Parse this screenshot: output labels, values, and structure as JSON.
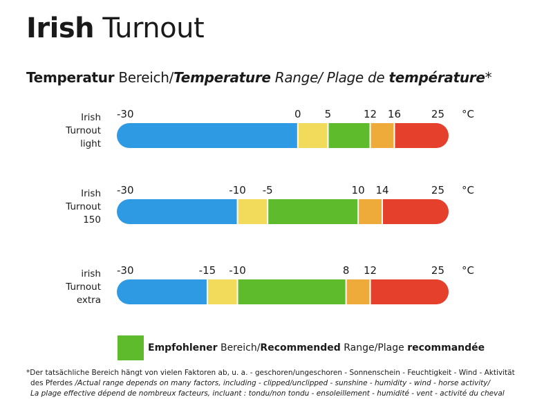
{
  "header": {
    "title_bold": "Irish",
    "title_rest": " Turnout",
    "subtitle_part1": "Temperatur",
    "subtitle_part2": " Bereich/",
    "subtitle_part3": "Temperature",
    "subtitle_part4": " Range/ Plage de ",
    "subtitle_part5": "température",
    "subtitle_part6": "*"
  },
  "chart_data": {
    "type": "bar",
    "unit": "°C",
    "range": [
      -30,
      25
    ],
    "colors": {
      "cold": "#2f9ae4",
      "cool": "#f2da5a",
      "recommended": "#5dbb2c",
      "warm": "#efab3a",
      "hot": "#e4402b"
    },
    "rows": [
      {
        "label_lines": [
          "Irish",
          "Turnout",
          "light"
        ],
        "ticks": [
          "-30",
          "0",
          "5",
          "12",
          "16",
          "25"
        ],
        "segments": [
          {
            "from": -30,
            "to": 0,
            "zone": "cold"
          },
          {
            "from": 0,
            "to": 5,
            "zone": "cool"
          },
          {
            "from": 5,
            "to": 12,
            "zone": "recommended"
          },
          {
            "from": 12,
            "to": 16,
            "zone": "warm"
          },
          {
            "from": 16,
            "to": 25,
            "zone": "hot"
          }
        ]
      },
      {
        "label_lines": [
          "Irish",
          "Turnout",
          "150"
        ],
        "ticks": [
          "-30",
          "-10",
          "-5",
          "10",
          "14",
          "25"
        ],
        "segments": [
          {
            "from": -30,
            "to": -10,
            "zone": "cold"
          },
          {
            "from": -10,
            "to": -5,
            "zone": "cool"
          },
          {
            "from": -5,
            "to": 10,
            "zone": "recommended"
          },
          {
            "from": 10,
            "to": 14,
            "zone": "warm"
          },
          {
            "from": 14,
            "to": 25,
            "zone": "hot"
          }
        ]
      },
      {
        "label_lines": [
          "irish",
          "Turnout",
          "extra"
        ],
        "ticks": [
          "-30",
          "-15",
          "-10",
          "8",
          "12",
          "25"
        ],
        "segments": [
          {
            "from": -30,
            "to": -15,
            "zone": "cold"
          },
          {
            "from": -15,
            "to": -10,
            "zone": "cool"
          },
          {
            "from": -10,
            "to": 8,
            "zone": "recommended"
          },
          {
            "from": 8,
            "to": 12,
            "zone": "warm"
          },
          {
            "from": 12,
            "to": 25,
            "zone": "hot"
          }
        ]
      }
    ]
  },
  "legend": {
    "part1": "Empfohlener",
    "part2": " Bereich/",
    "part3": "Recommended",
    "part4": " Range/Plage ",
    "part5": "recommandée"
  },
  "footnote": {
    "line1": "*Der tatsächliche Bereich hängt von vielen Faktoren ab, u. a. - geschoren/ungeschoren - Sonnenschein - Feuchtigkeit - Wind - Aktivität",
    "line2_plain": "des Pferdes ",
    "line2_italic": "/Actual range depends on many factors, including - clipped/unclipped - sunshine - humidity - wind - horse activity/",
    "line3": "La plage effective dépend de nombreux facteurs, incluant :  tondu/non tondu - ensoleillement - humidité - vent - activité du cheval"
  }
}
